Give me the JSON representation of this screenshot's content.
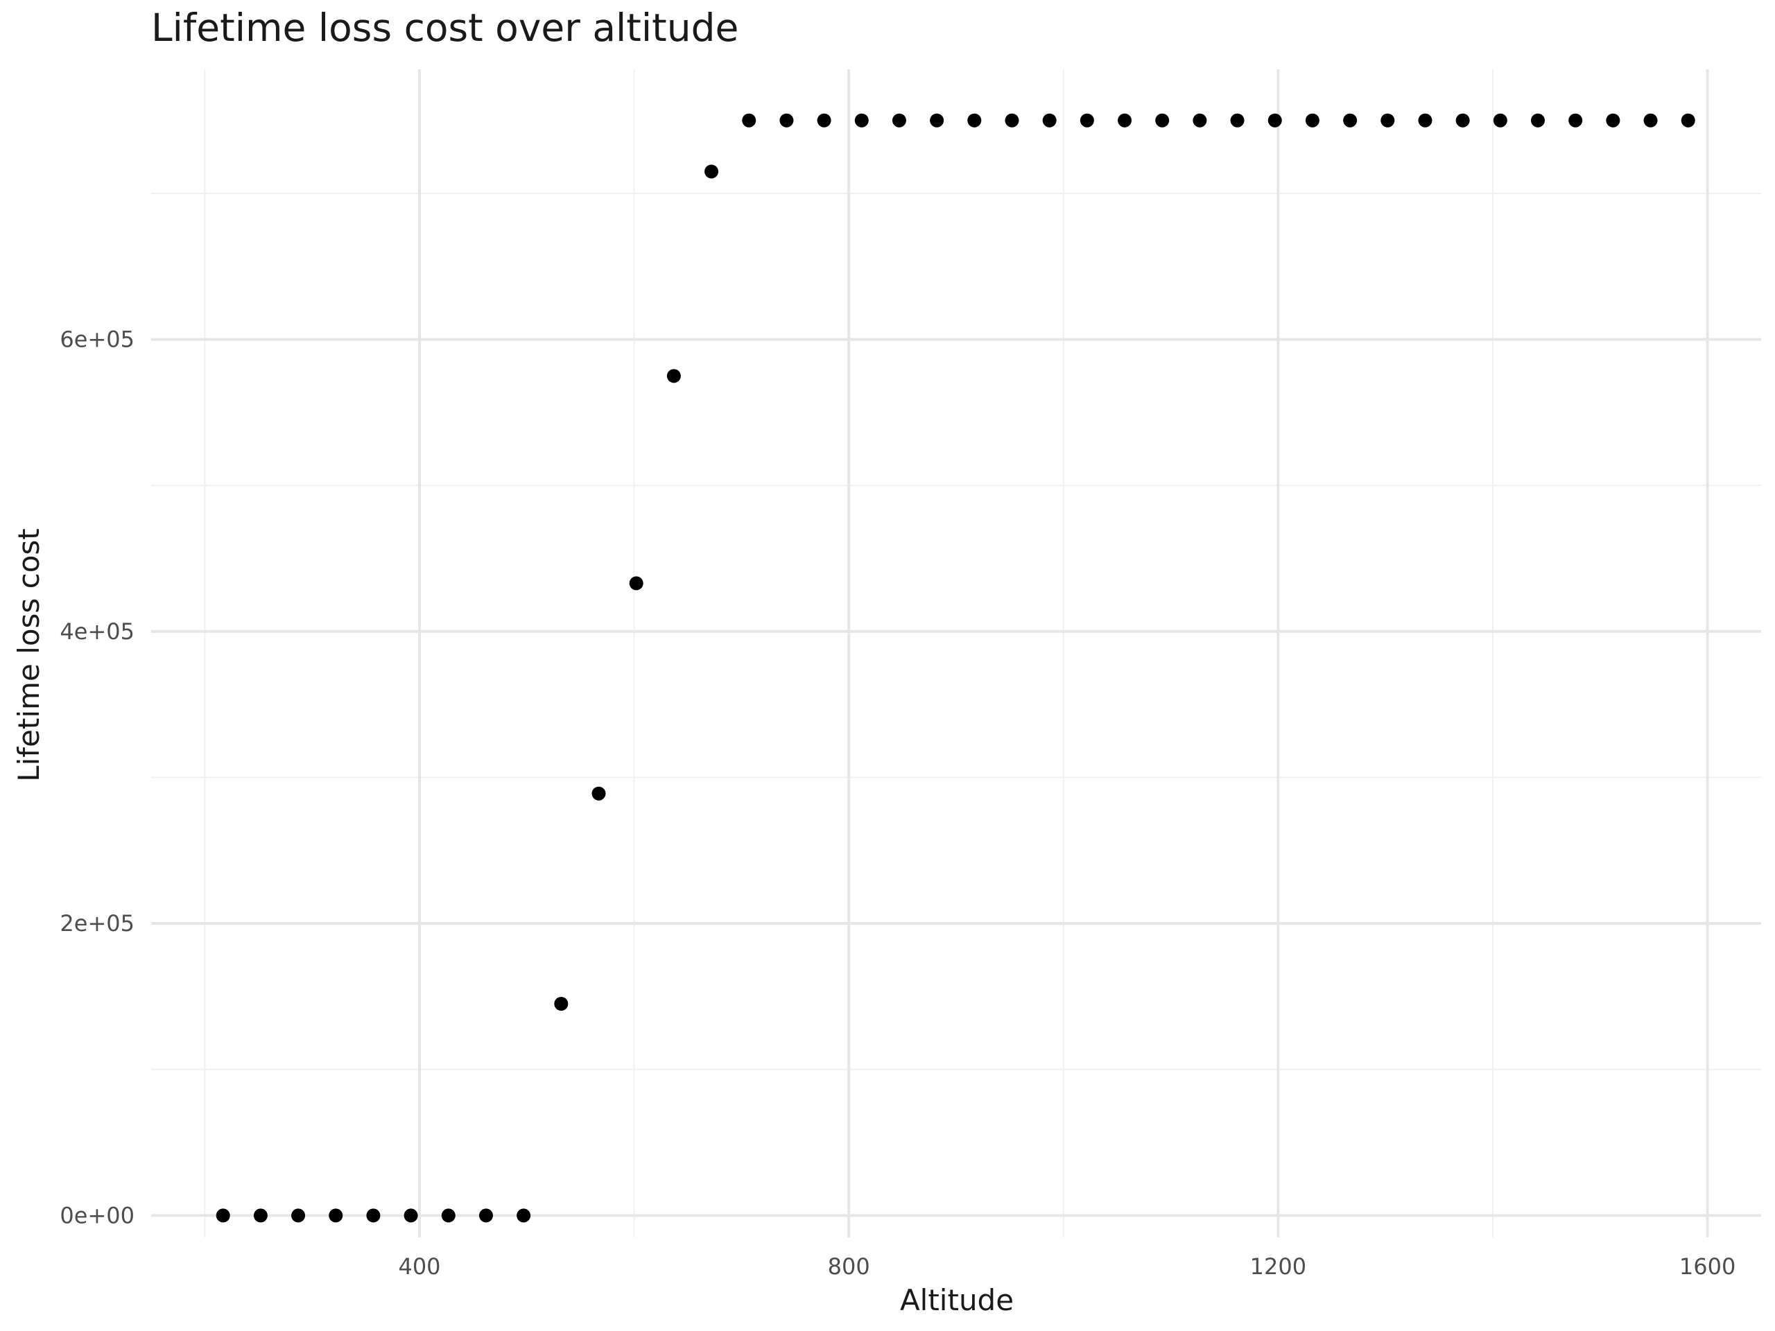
{
  "chart_data": {
    "type": "scatter",
    "title": "Lifetime loss cost over altitude",
    "xlabel": "Altitude",
    "ylabel": "Lifetime loss cost",
    "xlim": [
      150,
      1650
    ],
    "ylim": [
      -15000,
      785000
    ],
    "x_ticks": [
      400,
      800,
      1200,
      1600
    ],
    "x_tick_labels": [
      "400",
      "800",
      "1200",
      "1600"
    ],
    "x_minor": [
      200,
      600,
      1000,
      1400
    ],
    "y_ticks": [
      0,
      200000,
      400000,
      600000
    ],
    "y_tick_labels": [
      "0e+00",
      "2e+05",
      "4e+05",
      "6e+05"
    ],
    "y_minor": [
      100000,
      300000,
      500000,
      700000
    ],
    "grid": true,
    "point_color": "#000000",
    "series": [
      {
        "x": [
          217,
          252,
          287,
          322,
          357,
          392,
          427,
          462,
          497,
          532,
          567,
          602,
          637,
          672,
          707,
          742,
          777,
          812,
          847,
          882,
          917,
          952,
          987,
          1022,
          1057,
          1092,
          1127,
          1162,
          1197,
          1232,
          1267,
          1302,
          1337,
          1372,
          1407,
          1442,
          1477,
          1512,
          1547,
          1582
        ],
        "y": [
          0,
          0,
          0,
          0,
          0,
          0,
          0,
          0,
          0,
          145000,
          289000,
          433000,
          575000,
          715000,
          750000,
          750000,
          750000,
          750000,
          750000,
          750000,
          750000,
          750000,
          750000,
          750000,
          750000,
          750000,
          750000,
          750000,
          750000,
          750000,
          750000,
          750000,
          750000,
          750000,
          750000,
          750000,
          750000,
          750000,
          750000,
          750000
        ]
      }
    ]
  }
}
